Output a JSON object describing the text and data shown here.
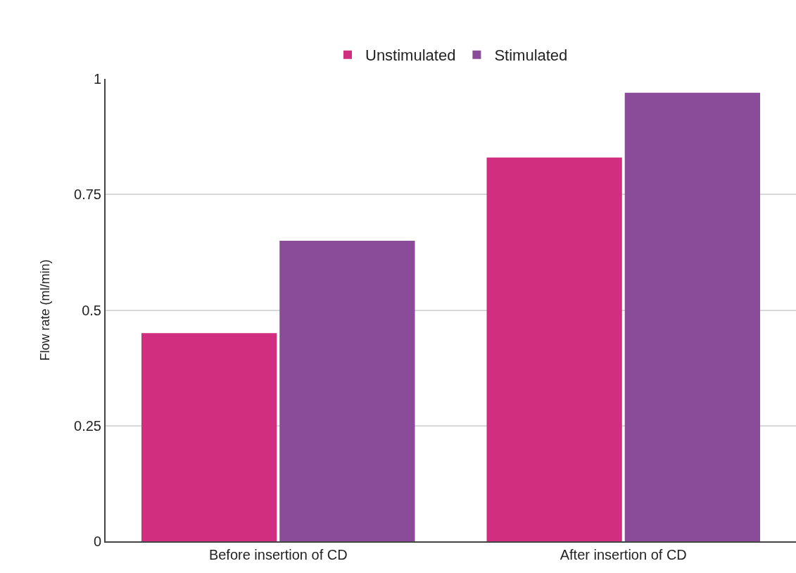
{
  "chart_data": {
    "type": "bar",
    "ylabel": "Flow rate (ml/min)",
    "categories": [
      "Before insertion of CD",
      "After insertion of CD"
    ],
    "series": [
      {
        "name": "Unstimulated",
        "color": "#d12e7f",
        "values": [
          0.45,
          0.83
        ]
      },
      {
        "name": "Stimulated",
        "color": "#8a4b99",
        "values": [
          0.65,
          0.97
        ]
      }
    ],
    "ylim": [
      0,
      1
    ],
    "yticks": [
      0,
      0.25,
      0.5,
      0.75,
      1
    ],
    "grid": "y",
    "legend": "top"
  }
}
